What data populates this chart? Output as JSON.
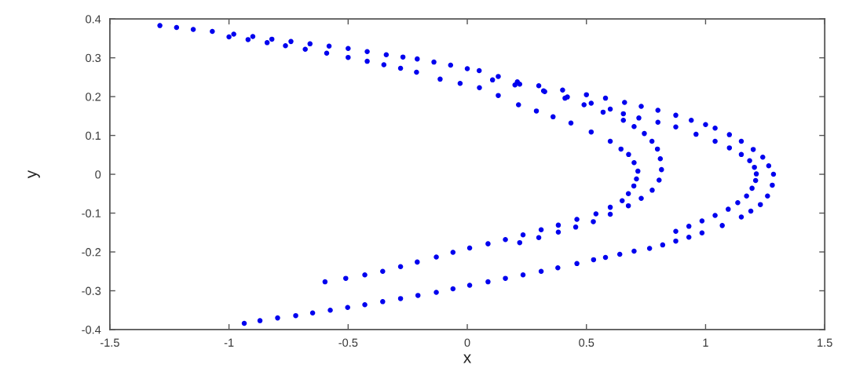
{
  "chart_data": {
    "type": "scatter",
    "xlabel": "x",
    "ylabel": "y",
    "color": "#0000ee",
    "marker": "circle",
    "xlim": [
      -1.5,
      1.5
    ],
    "ylim": [
      -0.4,
      0.4
    ],
    "xticks": [
      -1.5,
      -1,
      -0.5,
      0,
      0.5,
      1,
      1.5
    ],
    "yticks": [
      -0.4,
      -0.3,
      -0.2,
      -0.1,
      0,
      0.1,
      0.2,
      0.3,
      0.4
    ],
    "x": [
      -1.29,
      -1.22,
      -1.15,
      -1.07,
      -0.98,
      -0.9,
      -0.82,
      -0.74,
      -0.66,
      -0.58,
      -0.5,
      -0.42,
      -0.34,
      -0.27,
      -0.21,
      -0.14,
      -0.07,
      0.0,
      0.05,
      0.13,
      0.21,
      0.3,
      0.4,
      0.5,
      0.58,
      0.66,
      0.73,
      0.8,
      0.875,
      0.94,
      1.0,
      1.04,
      1.1,
      1.15,
      1.2,
      1.24,
      1.265,
      1.285,
      1.28,
      1.26,
      1.23,
      1.19,
      1.15,
      1.07,
      0.985,
      0.93,
      0.875,
      0.82,
      0.765,
      0.7,
      0.64,
      0.58,
      0.53,
      0.46,
      0.38,
      0.31,
      0.234,
      0.16,
      0.087,
      0.01,
      -0.06,
      -0.13,
      -0.207,
      -0.28,
      -0.355,
      -0.43,
      -0.502,
      -0.575,
      -0.649,
      -0.72,
      -0.796,
      -0.87,
      -0.936,
      0.22,
      0.32,
      0.42,
      0.52,
      0.6,
      0.655,
      0.72,
      0.8,
      0.875,
      0.96,
      1.04,
      1.1,
      1.15,
      1.185,
      1.205,
      1.213,
      1.21,
      1.195,
      1.172,
      1.135,
      1.095,
      1.04,
      0.985,
      0.93,
      0.875,
      -1.0,
      -0.92,
      -0.84,
      -0.763,
      -0.68,
      -0.59,
      -0.5,
      -0.42,
      -0.35,
      -0.28,
      -0.213,
      -0.114,
      -0.03,
      0.051,
      0.13,
      0.215,
      0.29,
      0.36,
      0.435,
      0.52,
      0.6,
      0.645,
      0.677,
      0.7,
      0.716,
      0.71,
      0.699,
      0.676,
      0.65,
      0.6,
      0.54,
      0.46,
      0.382,
      0.31,
      0.234,
      0.16,
      0.087,
      0.01,
      -0.06,
      -0.13,
      -0.21,
      -0.28,
      -0.355,
      -0.43,
      -0.51,
      -0.597,
      0.106,
      0.2,
      0.325,
      0.41,
      0.49,
      0.57,
      0.655,
      0.7,
      0.743,
      0.775,
      0.798,
      0.81,
      0.815,
      0.805,
      0.776,
      0.73,
      0.676,
      0.6,
      0.529,
      0.455,
      0.382,
      0.3,
      0.22
    ],
    "values": [
      0.383,
      0.378,
      0.373,
      0.368,
      0.361,
      0.355,
      0.348,
      0.342,
      0.336,
      0.33,
      0.324,
      0.316,
      0.308,
      0.302,
      0.297,
      0.289,
      0.281,
      0.272,
      0.267,
      0.252,
      0.238,
      0.228,
      0.217,
      0.205,
      0.196,
      0.185,
      0.175,
      0.165,
      0.152,
      0.139,
      0.128,
      0.119,
      0.102,
      0.085,
      0.064,
      0.044,
      0.022,
      0.0,
      -0.028,
      -0.056,
      -0.078,
      -0.095,
      -0.11,
      -0.132,
      -0.151,
      -0.162,
      -0.172,
      -0.182,
      -0.191,
      -0.198,
      -0.206,
      -0.214,
      -0.22,
      -0.23,
      -0.241,
      -0.25,
      -0.259,
      -0.268,
      -0.277,
      -0.286,
      -0.295,
      -0.304,
      -0.312,
      -0.32,
      -0.328,
      -0.336,
      -0.343,
      -0.35,
      -0.357,
      -0.364,
      -0.37,
      -0.377,
      -0.384,
      0.232,
      0.215,
      0.199,
      0.183,
      0.168,
      0.156,
      0.145,
      0.134,
      0.122,
      0.103,
      0.085,
      0.068,
      0.051,
      0.035,
      0.018,
      0.001,
      -0.016,
      -0.036,
      -0.056,
      -0.073,
      -0.09,
      -0.106,
      -0.12,
      -0.134,
      -0.147,
      0.354,
      0.347,
      0.339,
      0.331,
      0.322,
      0.312,
      0.301,
      0.291,
      0.282,
      0.273,
      0.263,
      0.245,
      0.234,
      0.223,
      0.203,
      0.179,
      0.163,
      0.148,
      0.132,
      0.109,
      0.085,
      0.065,
      0.051,
      0.03,
      0.008,
      -0.012,
      -0.03,
      -0.05,
      -0.068,
      -0.085,
      -0.102,
      -0.116,
      -0.131,
      -0.143,
      -0.156,
      -0.168,
      -0.179,
      -0.19,
      -0.201,
      -0.213,
      -0.226,
      -0.238,
      -0.25,
      -0.259,
      -0.268,
      -0.277,
      0.243,
      0.23,
      0.213,
      0.196,
      0.179,
      0.16,
      0.139,
      0.123,
      0.105,
      0.085,
      0.065,
      0.04,
      0.012,
      -0.015,
      -0.041,
      -0.062,
      -0.081,
      -0.103,
      -0.122,
      -0.136,
      -0.149,
      -0.163,
      -0.176
    ]
  }
}
